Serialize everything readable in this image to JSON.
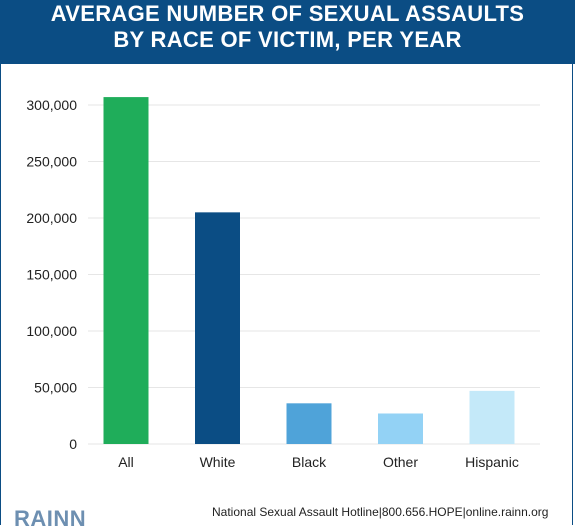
{
  "header": {
    "title_line1": "AVERAGE NUMBER OF SEXUAL ASSAULTS",
    "title_line2": "BY RACE OF VICTIM, PER YEAR"
  },
  "footer": {
    "hotline_text": "National Sexual Assault Hotline|800.656.HOPE|online.rainn.org",
    "logo_text": "RAINN"
  },
  "colors": {
    "header_bg": "#0b4d84",
    "all": "#1fad5a",
    "white": "#0b4d84",
    "black": "#4fa3d9",
    "other": "#93d2f5",
    "hispanic": "#c4e9f9"
  },
  "chart_data": {
    "type": "bar",
    "title": "AVERAGE NUMBER OF SEXUAL ASSAULTS BY RACE OF VICTIM, PER YEAR",
    "categories": [
      "All",
      "White",
      "Black",
      "Other",
      "Hispanic"
    ],
    "values": [
      307000,
      205000,
      36000,
      27000,
      47000
    ],
    "bar_colors": [
      "#1fad5a",
      "#0b4d84",
      "#4fa3d9",
      "#93d2f5",
      "#c4e9f9"
    ],
    "y_ticks": [
      0,
      50000,
      100000,
      150000,
      200000,
      250000,
      300000
    ],
    "y_tick_labels": [
      "0",
      "50,000",
      "100,000",
      "150,000",
      "200,000",
      "250,000",
      "300,000"
    ],
    "ylim": [
      0,
      300000
    ],
    "xlabel": "",
    "ylabel": "",
    "grid": true,
    "legend": "none"
  }
}
